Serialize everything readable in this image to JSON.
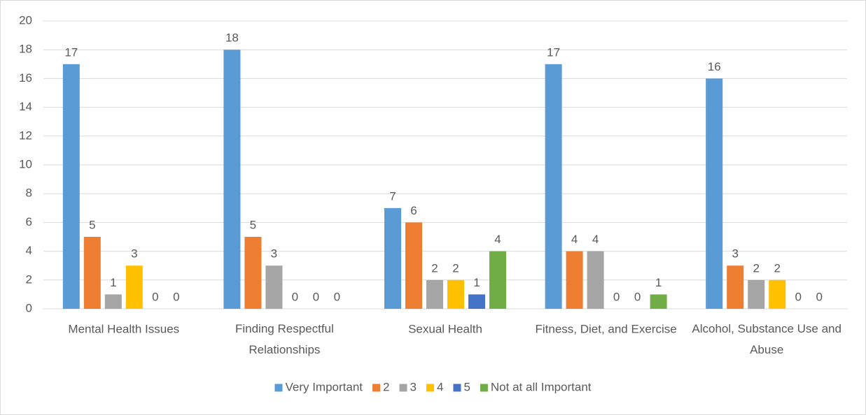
{
  "chart_data": {
    "type": "bar",
    "categories": [
      "Mental Health Issues",
      "Finding Respectful Relationships",
      "Sexual Health",
      "Fitness, Diet, and Exercise",
      "Alcohol, Substance Use and Abuse"
    ],
    "series": [
      {
        "name": "Very Important",
        "color": "#5b9bd5",
        "values": [
          17,
          18,
          7,
          17,
          16
        ]
      },
      {
        "name": "2",
        "color": "#ed7d31",
        "values": [
          5,
          5,
          6,
          4,
          3
        ]
      },
      {
        "name": "3",
        "color": "#a5a5a5",
        "values": [
          1,
          3,
          2,
          4,
          2
        ]
      },
      {
        "name": "4",
        "color": "#ffc000",
        "values": [
          3,
          0,
          2,
          0,
          2
        ]
      },
      {
        "name": "5",
        "color": "#4472c4",
        "values": [
          0,
          0,
          1,
          0,
          0
        ]
      },
      {
        "name": "Not at all Important",
        "color": "#70ad47",
        "values": [
          0,
          0,
          4,
          1,
          0
        ]
      }
    ],
    "ylim": [
      0,
      20
    ],
    "yticks": [
      0,
      2,
      4,
      6,
      8,
      10,
      12,
      14,
      16,
      18,
      20
    ],
    "grid": true,
    "legend": "bottom"
  }
}
